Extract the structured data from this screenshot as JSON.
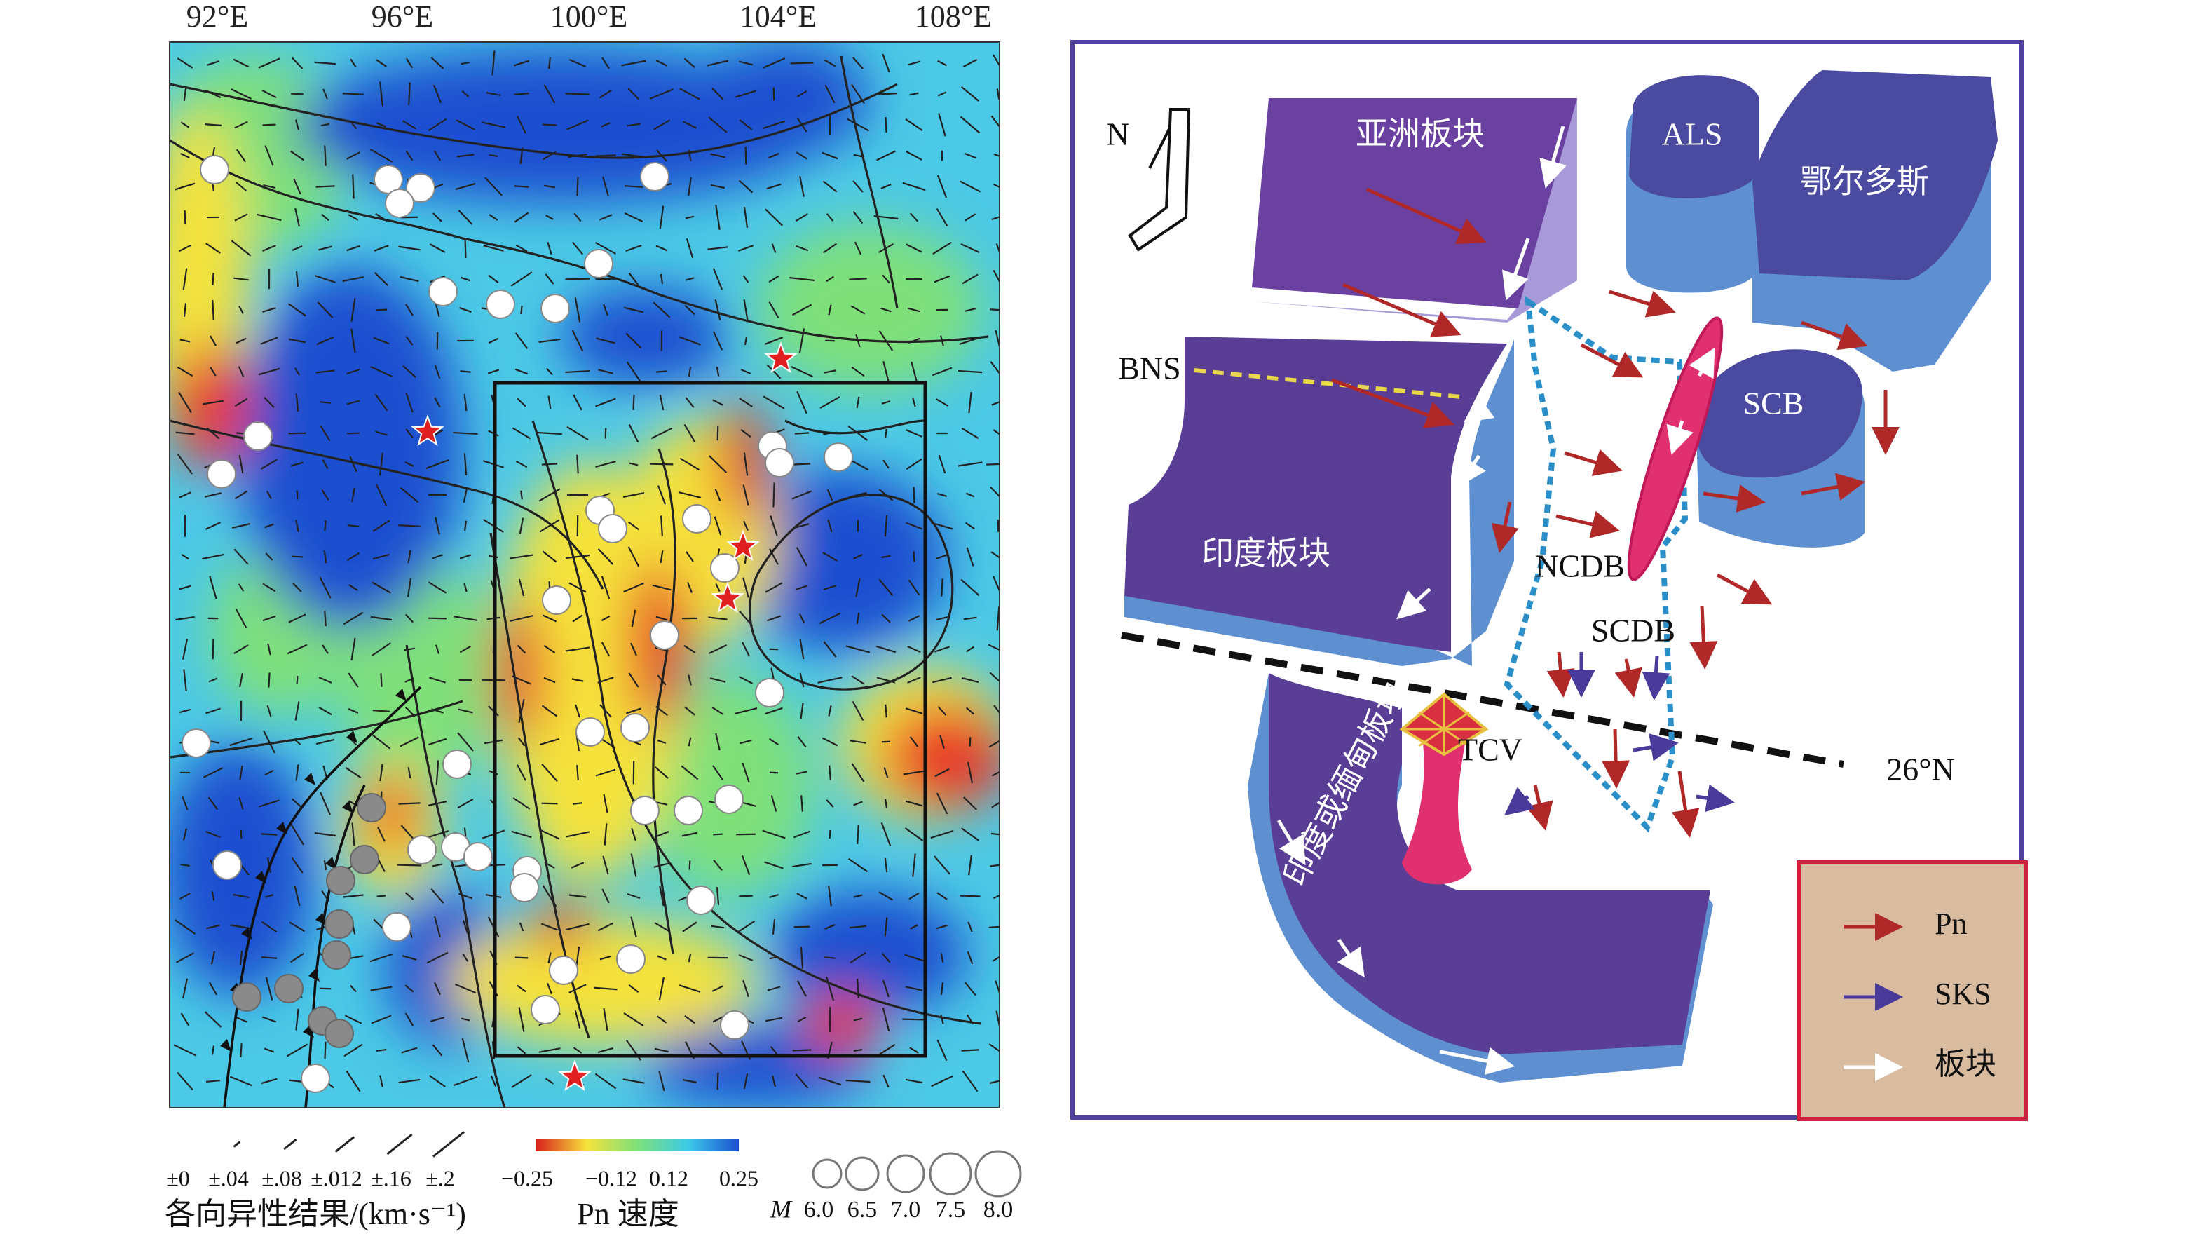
{
  "map": {
    "longitude_labels": [
      "92°E",
      "96°E",
      "100°E",
      "104°E",
      "108°E"
    ],
    "anisotropy_legend": {
      "labels": [
        "±0",
        "±.04",
        "±.08",
        "±.012",
        "±.16",
        "±.2"
      ],
      "title": "各向异性结果/(km·s⁻¹)"
    },
    "velocity_legend": {
      "labels": [
        "−0.25",
        "−0.12",
        "0.12",
        "0.25"
      ],
      "title": "Pn 速度"
    },
    "magnitude_legend": {
      "symbol": "M",
      "labels": [
        "6.0",
        "6.5",
        "7.0",
        "7.5",
        "8.0"
      ]
    }
  },
  "diagram": {
    "north": "N",
    "labels": {
      "asia": "亚洲板块",
      "als": "ALS",
      "ordos": "鄂尔多斯",
      "bns": "BNS",
      "scb": "SCB",
      "india": "印度板块",
      "ncdb": "NCDB",
      "scdb": "SCDB",
      "latitude": "26°N",
      "tcv": "TCV",
      "burma": "印度或缅甸板块"
    },
    "legend": [
      "Pn",
      "SKS",
      "板块"
    ]
  }
}
